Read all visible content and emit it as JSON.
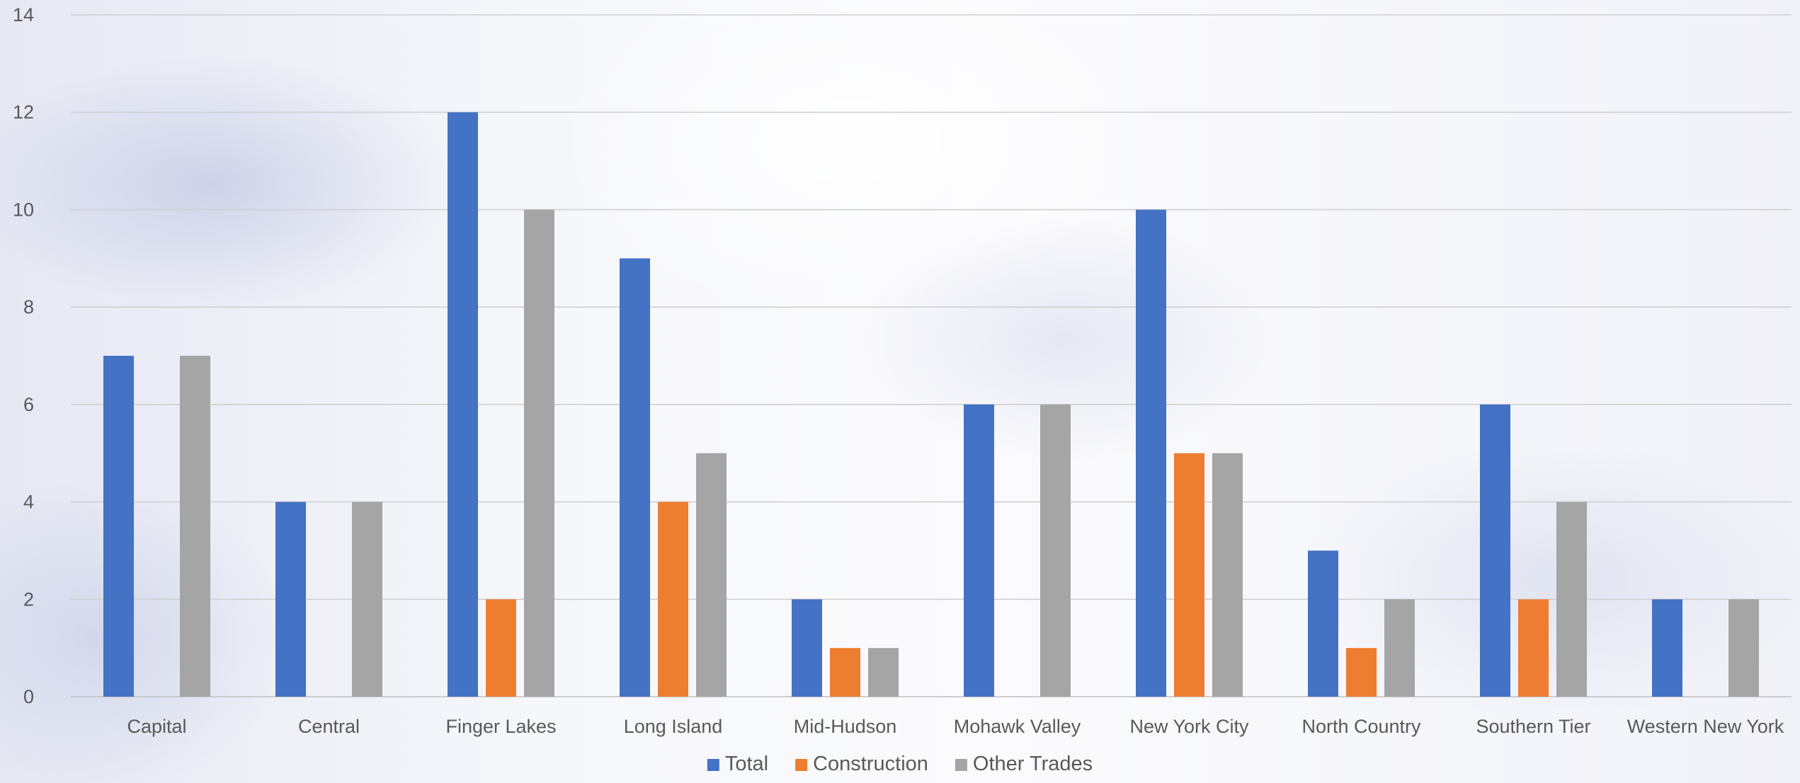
{
  "chart_data": {
    "type": "bar",
    "categories": [
      "Capital",
      "Central",
      "Finger Lakes",
      "Long Island",
      "Mid-Hudson",
      "Mohawk Valley",
      "New York City",
      "North Country",
      "Southern Tier",
      "Western New York"
    ],
    "series": [
      {
        "name": "Total",
        "color": "#4472c4",
        "values": [
          7,
          4,
          12,
          9,
          2,
          6,
          10,
          3,
          6,
          2
        ]
      },
      {
        "name": "Construction",
        "color": "#ed7d31",
        "values": [
          0,
          0,
          2,
          4,
          1,
          0,
          5,
          1,
          2,
          0
        ]
      },
      {
        "name": "Other Trades",
        "color": "#a5a5a5",
        "values": [
          7,
          4,
          10,
          5,
          1,
          6,
          5,
          2,
          4,
          2
        ]
      }
    ],
    "yticks": [
      0,
      2,
      4,
      6,
      8,
      10,
      12,
      14
    ],
    "ylim": [
      0,
      14
    ],
    "grid": true,
    "legend_position": "bottom-center",
    "title": "",
    "xlabel": "",
    "ylabel": ""
  }
}
